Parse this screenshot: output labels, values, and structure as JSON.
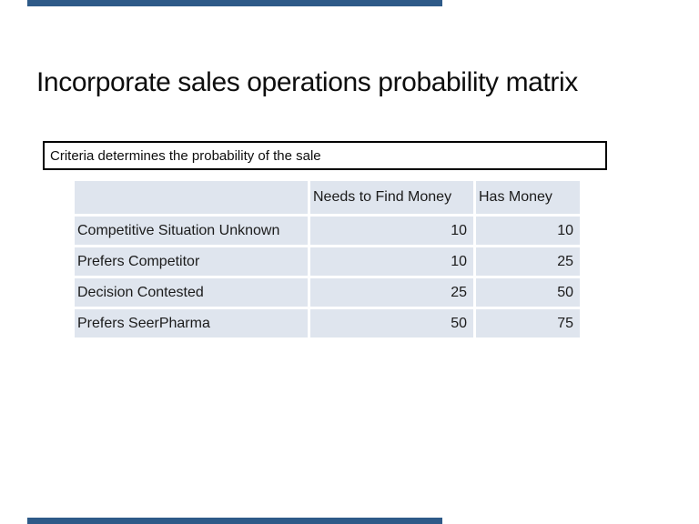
{
  "slide": {
    "title": "Incorporate sales operations probability matrix",
    "callout": "Criteria determines the probability of the sale"
  },
  "table": {
    "columns": [
      "",
      "Needs to Find Money",
      "Has Money"
    ],
    "rows": [
      {
        "label": "Competitive Situation Unknown",
        "values": [
          "10",
          "10"
        ]
      },
      {
        "label": "Prefers Competitor",
        "values": [
          "10",
          "25"
        ]
      },
      {
        "label": "Decision Contested",
        "values": [
          "25",
          "50"
        ]
      },
      {
        "label": "Prefers SeerPharma",
        "values": [
          "50",
          "75"
        ]
      }
    ]
  },
  "colors": {
    "accent_bar": "#2e5a88",
    "table_cell_bg": "#dfe5ee",
    "callout_border": "#000000",
    "text": "#1b1b1b"
  }
}
